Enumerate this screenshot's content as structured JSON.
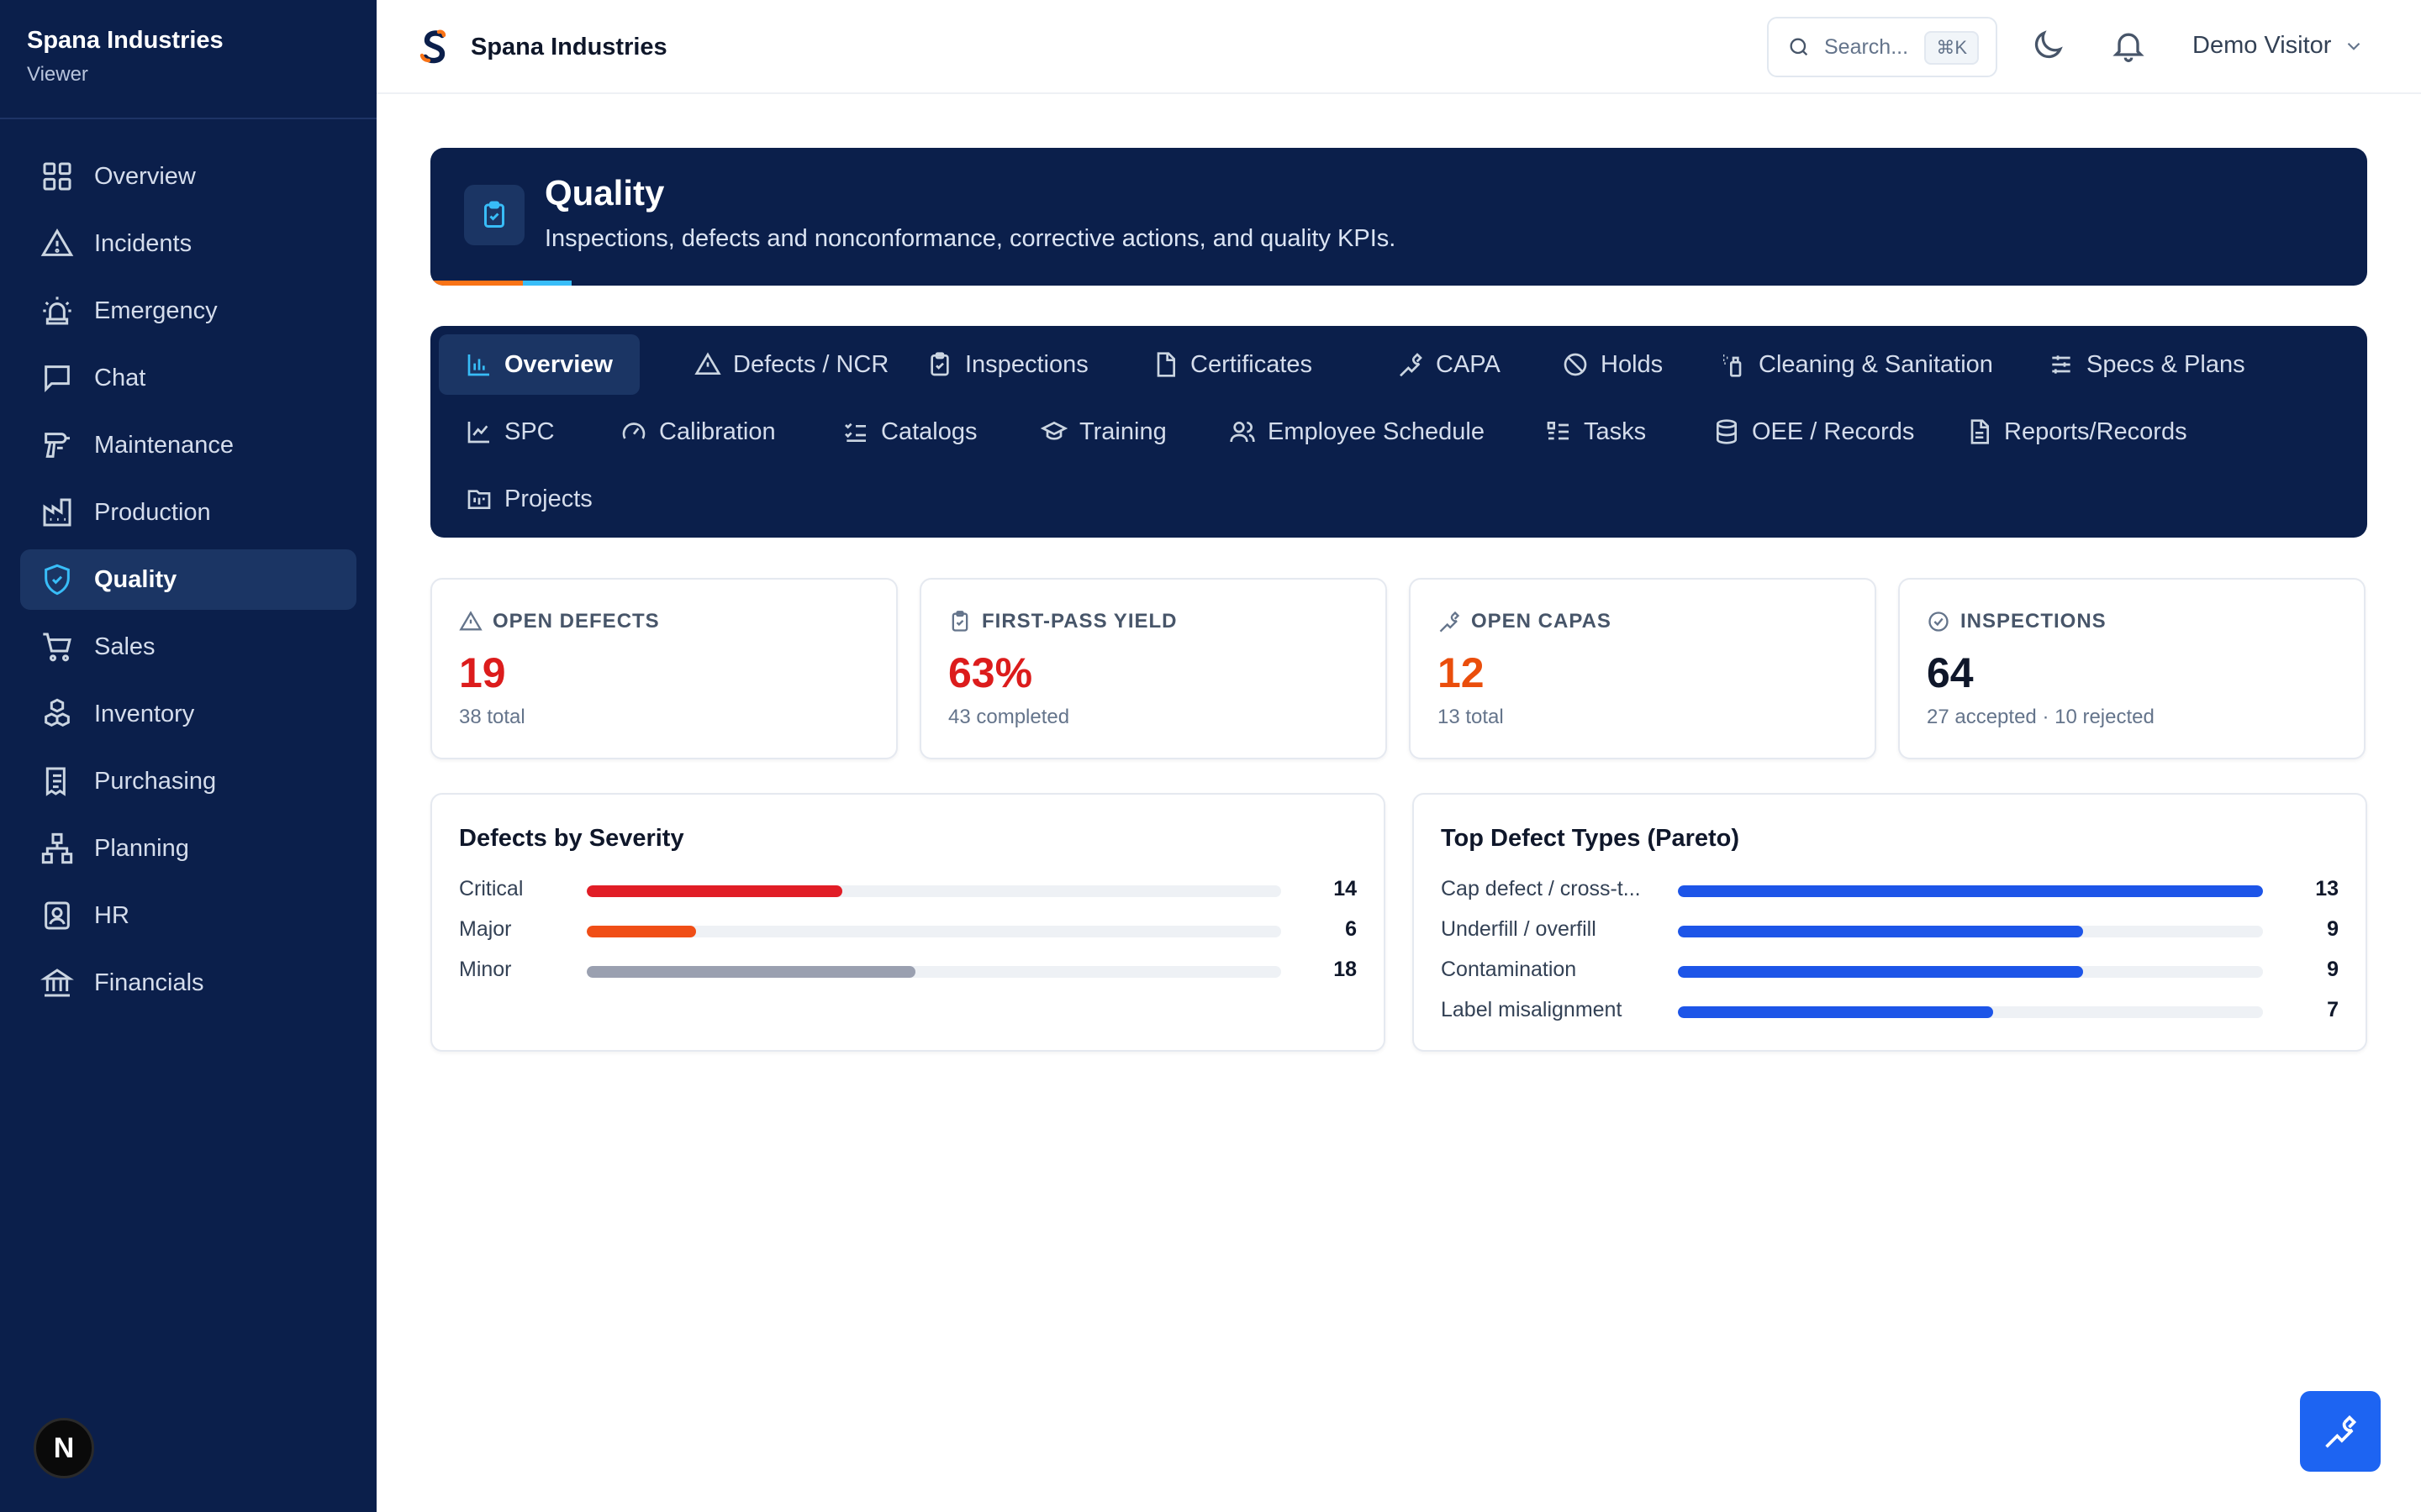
{
  "sidebar": {
    "brand": "Spana Industries",
    "role": "Viewer",
    "items": [
      {
        "label": "Overview",
        "icon": "grid-icon"
      },
      {
        "label": "Incidents",
        "icon": "warning-icon"
      },
      {
        "label": "Emergency",
        "icon": "siren-icon"
      },
      {
        "label": "Chat",
        "icon": "chat-icon"
      },
      {
        "label": "Maintenance",
        "icon": "drill-icon"
      },
      {
        "label": "Production",
        "icon": "factory-icon"
      },
      {
        "label": "Quality",
        "icon": "shield-check-icon",
        "active": true
      },
      {
        "label": "Sales",
        "icon": "cart-icon"
      },
      {
        "label": "Inventory",
        "icon": "boxes-icon"
      },
      {
        "label": "Purchasing",
        "icon": "receipt-icon"
      },
      {
        "label": "Planning",
        "icon": "network-icon"
      },
      {
        "label": "HR",
        "icon": "badge-icon"
      },
      {
        "label": "Financials",
        "icon": "bank-icon"
      }
    ],
    "badge": "N"
  },
  "header": {
    "title": "Spana Industries",
    "search_placeholder": "Search...",
    "search_shortcut": "⌘K",
    "user": "Demo Visitor"
  },
  "hero": {
    "title": "Quality",
    "subtitle": "Inspections, defects and nonconformance, corrective actions, and quality KPIs."
  },
  "tabs": [
    {
      "label": "Overview",
      "icon": "bar-chart-icon",
      "active": true
    },
    {
      "label": "Defects / NCR",
      "icon": "warning-icon"
    },
    {
      "label": "Inspections",
      "icon": "clipboard-check-icon"
    },
    {
      "label": "Certificates",
      "icon": "file-icon"
    },
    {
      "label": "CAPA",
      "icon": "wrench-icon"
    },
    {
      "label": "Holds",
      "icon": "ban-icon"
    },
    {
      "label": "Cleaning & Sanitation",
      "icon": "spray-icon"
    },
    {
      "label": "Specs & Plans",
      "icon": "sliders-icon"
    },
    {
      "label": "SPC",
      "icon": "line-chart-icon"
    },
    {
      "label": "Calibration",
      "icon": "gauge-icon"
    },
    {
      "label": "Catalogs",
      "icon": "list-checks-icon"
    },
    {
      "label": "Training",
      "icon": "graduation-cap-icon"
    },
    {
      "label": "Employee Schedule",
      "icon": "users-icon"
    },
    {
      "label": "Tasks",
      "icon": "list-todo-icon"
    },
    {
      "label": "OEE / Records",
      "icon": "database-icon"
    },
    {
      "label": "Reports/Records",
      "icon": "file-text-icon"
    },
    {
      "label": "Projects",
      "icon": "folder-kanban-icon"
    }
  ],
  "kpis": [
    {
      "label": "OPEN DEFECTS",
      "value": "19",
      "sub": "38 total",
      "color": "#dc1c1c",
      "icon": "warning-icon"
    },
    {
      "label": "FIRST-PASS YIELD",
      "value": "63%",
      "sub": "43 completed",
      "color": "#dc1c1c",
      "icon": "clipboard-check-icon"
    },
    {
      "label": "OPEN CAPAS",
      "value": "12",
      "sub": "13 total",
      "color": "#ea4e0c",
      "icon": "wrench-icon"
    },
    {
      "label": "INSPECTIONS",
      "value": "64",
      "sub": "27 accepted · 10 rejected",
      "color": "#0f172a",
      "icon": "check-circle-icon"
    }
  ],
  "chart_data": [
    {
      "type": "bar",
      "title": "Defects by Severity",
      "categories": [
        "Critical",
        "Major",
        "Minor"
      ],
      "values": [
        14,
        6,
        18
      ],
      "max": 38,
      "colors": [
        "#e11d26",
        "#f04e16",
        "#9aa0b0"
      ]
    },
    {
      "type": "bar",
      "title": "Top Defect Types (Pareto)",
      "categories": [
        "Cap defect / cross-t...",
        "Underfill / overfill",
        "Contamination",
        "Label misalignment"
      ],
      "values": [
        13,
        9,
        9,
        7
      ],
      "max": 13,
      "colors": [
        "#1d55e8",
        "#1d55e8",
        "#1d55e8",
        "#1d55e8"
      ]
    }
  ]
}
